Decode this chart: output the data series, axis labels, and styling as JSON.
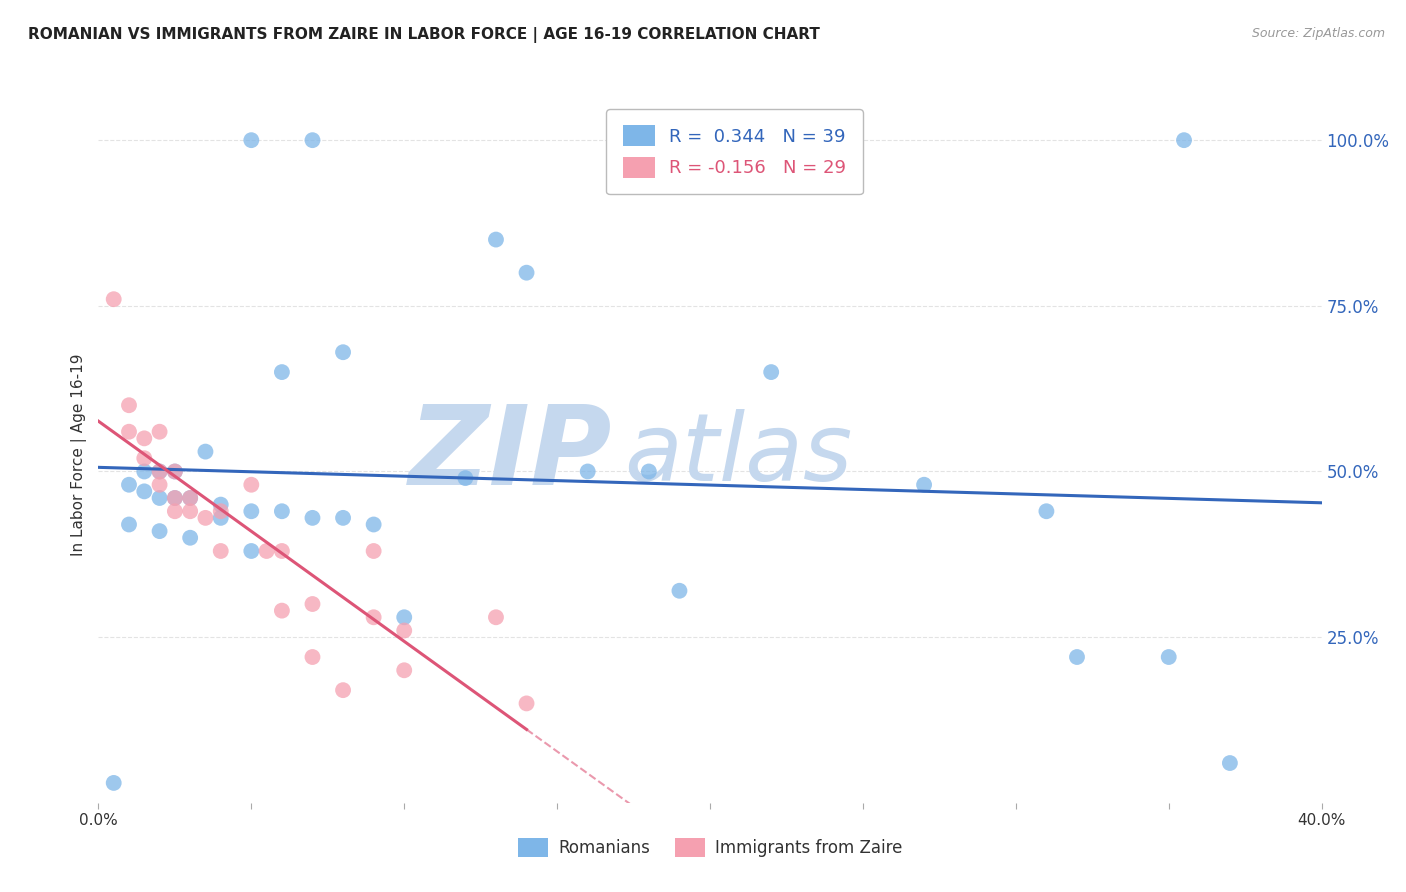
{
  "title": "ROMANIAN VS IMMIGRANTS FROM ZAIRE IN LABOR FORCE | AGE 16-19 CORRELATION CHART",
  "source": "Source: ZipAtlas.com",
  "ylabel": "In Labor Force | Age 16-19",
  "xlim": [
    0.0,
    0.4
  ],
  "ylim": [
    0.0,
    1.05
  ],
  "right_yticks": [
    0.0,
    0.25,
    0.5,
    0.75,
    1.0
  ],
  "right_ytick_labels": [
    "",
    "25.0%",
    "50.0%",
    "75.0%",
    "100.0%"
  ],
  "blue_R": 0.344,
  "blue_N": 39,
  "pink_R": -0.156,
  "pink_N": 29,
  "blue_color": "#7EB6E8",
  "pink_color": "#F5A0B0",
  "blue_line_color": "#3366BB",
  "pink_line_color": "#DD5577",
  "blue_scatter_x": [
    0.05,
    0.07,
    0.13,
    0.14,
    0.08,
    0.06,
    0.035,
    0.025,
    0.02,
    0.015,
    0.01,
    0.015,
    0.02,
    0.025,
    0.03,
    0.04,
    0.05,
    0.06,
    0.07,
    0.08,
    0.09,
    0.12,
    0.16,
    0.18,
    0.19,
    0.22,
    0.27,
    0.31,
    0.32,
    0.35,
    0.355,
    0.37,
    0.01,
    0.02,
    0.03,
    0.04,
    0.05,
    0.1,
    0.005
  ],
  "blue_scatter_y": [
    1.0,
    1.0,
    0.85,
    0.8,
    0.68,
    0.65,
    0.53,
    0.5,
    0.5,
    0.5,
    0.48,
    0.47,
    0.46,
    0.46,
    0.46,
    0.45,
    0.44,
    0.44,
    0.43,
    0.43,
    0.42,
    0.49,
    0.5,
    0.5,
    0.32,
    0.65,
    0.48,
    0.44,
    0.22,
    0.22,
    1.0,
    0.06,
    0.42,
    0.41,
    0.4,
    0.43,
    0.38,
    0.28,
    0.03
  ],
  "pink_scatter_x": [
    0.005,
    0.01,
    0.01,
    0.015,
    0.015,
    0.02,
    0.02,
    0.02,
    0.025,
    0.025,
    0.025,
    0.03,
    0.03,
    0.035,
    0.04,
    0.04,
    0.05,
    0.055,
    0.06,
    0.06,
    0.07,
    0.07,
    0.08,
    0.09,
    0.09,
    0.1,
    0.1,
    0.13,
    0.14
  ],
  "pink_scatter_y": [
    0.76,
    0.6,
    0.56,
    0.55,
    0.52,
    0.56,
    0.5,
    0.48,
    0.5,
    0.46,
    0.44,
    0.46,
    0.44,
    0.43,
    0.44,
    0.38,
    0.48,
    0.38,
    0.38,
    0.29,
    0.3,
    0.22,
    0.17,
    0.38,
    0.28,
    0.26,
    0.2,
    0.28,
    0.15
  ],
  "watermark_zip": "ZIP",
  "watermark_atlas": "atlas",
  "watermark_color": "#C5D8EE",
  "background_color": "#FFFFFF",
  "grid_color": "#DDDDDD"
}
